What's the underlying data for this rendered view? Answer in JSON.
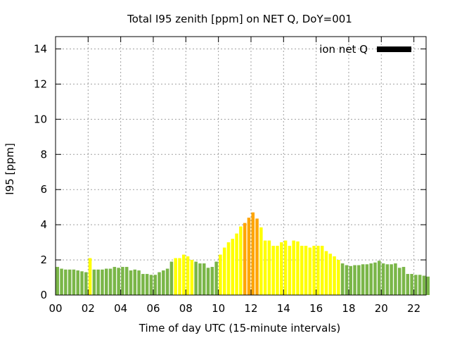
{
  "chart_data": {
    "type": "bar",
    "title": "Total I95 zenith [ppm] on NET Q, DoY=001",
    "xlabel": "Time of day UTC (15-minute intervals)",
    "ylabel": "I95 [ppm]",
    "legend": {
      "label": "ion net Q",
      "color": "#000000",
      "position": "top-right"
    },
    "grid": true,
    "xlim": [
      0,
      22.75
    ],
    "ylim": [
      0,
      14.7
    ],
    "x_ticks": [
      0,
      2,
      4,
      6,
      8,
      10,
      12,
      14,
      16,
      18,
      20,
      22
    ],
    "x_tick_labels": [
      "00",
      "02",
      "04",
      "06",
      "08",
      "10",
      "12",
      "14",
      "16",
      "18",
      "20",
      "22"
    ],
    "y_ticks": [
      0,
      2,
      4,
      6,
      8,
      10,
      12,
      14
    ],
    "y_tick_labels": [
      "0",
      "2",
      "4",
      "6",
      "8",
      "10",
      "12",
      "14"
    ],
    "interval_hours": 0.25,
    "colors": {
      "low": "#7ab648",
      "medium": "#ffff00",
      "high": "#ffa500"
    },
    "thresholds": {
      "medium": 2.0,
      "high": 4.0
    },
    "values": [
      1.6,
      1.5,
      1.45,
      1.45,
      1.45,
      1.4,
      1.35,
      1.3,
      2.1,
      1.45,
      1.45,
      1.45,
      1.5,
      1.5,
      1.6,
      1.55,
      1.6,
      1.6,
      1.4,
      1.45,
      1.4,
      1.2,
      1.2,
      1.15,
      1.15,
      1.3,
      1.4,
      1.5,
      1.9,
      2.1,
      2.1,
      2.3,
      2.2,
      2.0,
      1.9,
      1.8,
      1.8,
      1.55,
      1.6,
      1.9,
      2.3,
      2.7,
      3.0,
      3.2,
      3.5,
      3.9,
      4.1,
      4.4,
      4.7,
      4.35,
      3.85,
      3.1,
      3.1,
      2.8,
      2.8,
      3.0,
      3.1,
      2.8,
      3.1,
      3.05,
      2.8,
      2.8,
      2.7,
      2.8,
      2.8,
      2.8,
      2.5,
      2.35,
      2.2,
      2.0,
      1.8,
      1.7,
      1.65,
      1.7,
      1.7,
      1.75,
      1.75,
      1.8,
      1.85,
      1.95,
      1.8,
      1.75,
      1.75,
      1.8,
      1.55,
      1.6,
      1.2,
      1.2,
      1.15,
      1.15,
      1.1,
      1.05
    ]
  }
}
